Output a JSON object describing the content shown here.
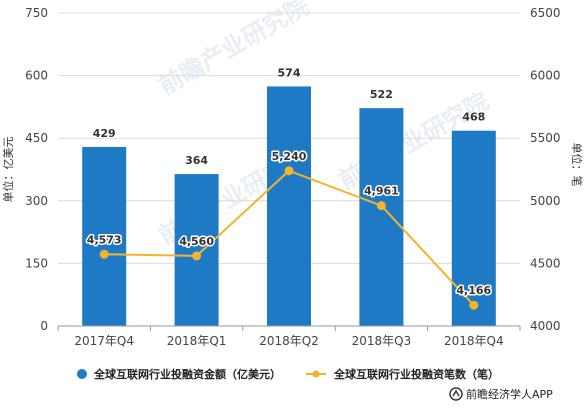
{
  "chart_data": {
    "type": "bar",
    "categories": [
      "2017年Q4",
      "2018年Q1",
      "2018年Q2",
      "2018年Q3",
      "2018年Q4"
    ],
    "series": [
      {
        "name": "全球互联网行业投融资金额（亿美元）",
        "type": "bar",
        "axis": "left",
        "values": [
          429,
          364,
          574,
          522,
          468
        ],
        "labels": [
          "429",
          "364",
          "574",
          "522",
          "468"
        ],
        "color": "#1f7ac5"
      },
      {
        "name": "全球互联网行业投融资笔数（笔）",
        "type": "line",
        "axis": "right",
        "values": [
          4573,
          4560,
          5240,
          4961,
          4166
        ],
        "labels": [
          "4,573",
          "4,560",
          "5,240",
          "4,961",
          "4,166"
        ],
        "color": "#f3b32a"
      }
    ],
    "ylabel_left": "单位：亿美元",
    "ylabel_right": "单位：笔",
    "ylim_left": [
      0,
      750
    ],
    "ylim_right": [
      4000,
      6500
    ],
    "yticks_left": [
      "0",
      "150",
      "300",
      "450",
      "600",
      "750"
    ],
    "yticks_right": [
      "4000",
      "4500",
      "5000",
      "5500",
      "6000",
      "6500"
    ],
    "grid": true,
    "legend_position": "bottom"
  },
  "watermark": "前瞻产业研究院",
  "credit": "前瞻经济学人APP"
}
